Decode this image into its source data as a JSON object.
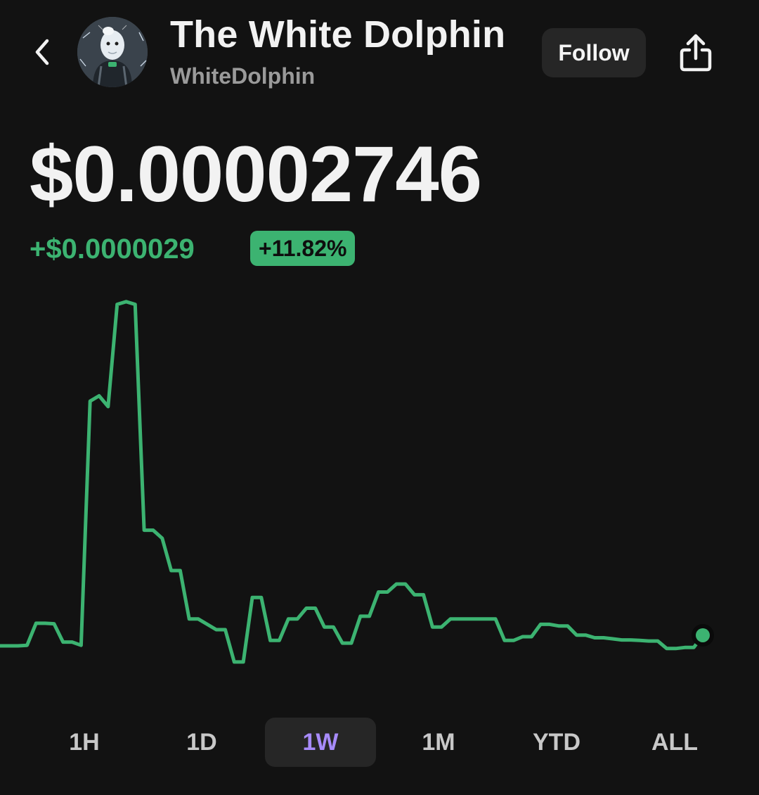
{
  "header": {
    "back_icon": "chevron-left-icon",
    "title": "The White Dolphin",
    "handle": "WhiteDolphin",
    "follow_label": "Follow",
    "share_icon": "share-icon"
  },
  "price": {
    "value": "$0.00002746",
    "change_abs": "+$0.0000029",
    "change_pct": "+11.82%"
  },
  "colors": {
    "background": "#121212",
    "accent_green": "#3cb371",
    "selected_tab": "#a78bfa",
    "muted": "#9a9a9a"
  },
  "range_tabs": {
    "items": [
      "1H",
      "1D",
      "1W",
      "1M",
      "YTD",
      "ALL"
    ],
    "selected": "1W"
  },
  "chart_data": {
    "type": "line",
    "series": [
      {
        "values": [
          2.55,
          2.55,
          2.55,
          2.56,
          2.97,
          2.97,
          2.96,
          2.62,
          2.62,
          2.56,
          7.1,
          7.2,
          7.0,
          8.9,
          8.95,
          8.9,
          4.7,
          4.7,
          4.55,
          3.95,
          3.95,
          3.05,
          3.05,
          2.95,
          2.85,
          2.85,
          2.25,
          2.25,
          3.45,
          3.45,
          2.65,
          2.65,
          3.05,
          3.05,
          3.25,
          3.25,
          2.9,
          2.9,
          2.6,
          2.6,
          3.1,
          3.1,
          3.55,
          3.55,
          3.7,
          3.7,
          3.5,
          3.5,
          2.9,
          2.9,
          3.05,
          3.05,
          3.05,
          3.05,
          3.05,
          3.05,
          2.65,
          2.65,
          2.72,
          2.72,
          2.95,
          2.95,
          2.92,
          2.92,
          2.75,
          2.75,
          2.7,
          2.7,
          2.68,
          2.66,
          2.66,
          2.65,
          2.64,
          2.64,
          2.5,
          2.5,
          2.52,
          2.52,
          2.746
        ]
      }
    ],
    "y_unit": "1e-5 USD",
    "grid": false,
    "legend": "none",
    "end_marker": true
  }
}
